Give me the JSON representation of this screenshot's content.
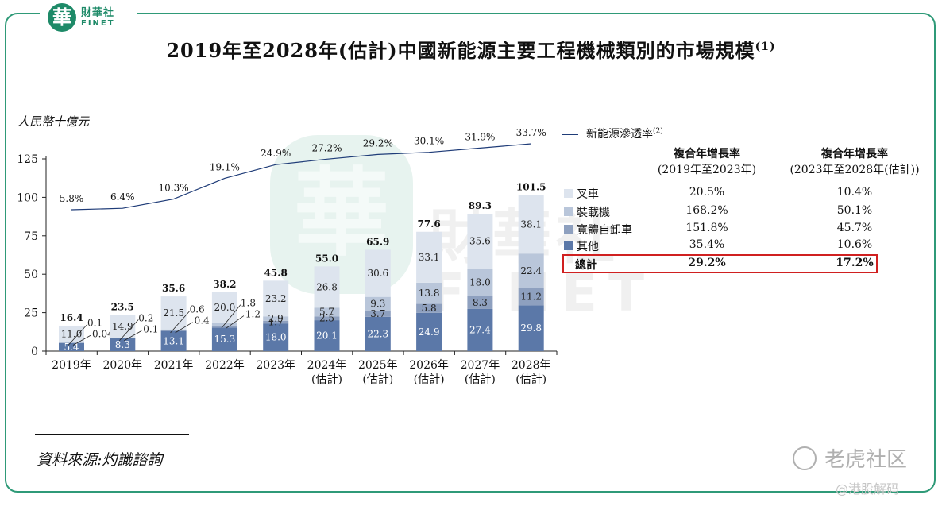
{
  "header": {
    "logo_seal": "華",
    "logo_cn": "財華社",
    "logo_en": "FINET"
  },
  "title": "2019年至2028年(估計)中國新能源主要工程機械類別的市場規模",
  "title_note": "(1)",
  "unit": "人民幣十億元",
  "penetration_legend": "新能源滲透率",
  "penetration_note": "(2)",
  "colors": {
    "forklift": "#dde4ee",
    "loader": "#b9c6da",
    "wide_body": "#8ea0bf",
    "other": "#5b78a8",
    "line": "#1f3c78",
    "frame": "#2f9a78",
    "highlight": "#d02020"
  },
  "chart_data": {
    "type": "bar",
    "stacked": true,
    "categories": [
      "2019年",
      "2020年",
      "2021年",
      "2022年",
      "2023年",
      "2024年\n(估計)",
      "2025年\n(估計)",
      "2026年\n(估計)",
      "2027年\n(估計)",
      "2028年\n(估計)"
    ],
    "ylim": [
      0,
      125
    ],
    "yticks": [
      "0",
      "25",
      "50",
      "75",
      "100",
      "125"
    ],
    "ylabel": "人民幣十億元",
    "series": [
      {
        "name": "其他",
        "values": [
          5.4,
          8.3,
          13.1,
          15.3,
          18.0,
          20.1,
          22.3,
          24.9,
          27.4,
          29.8
        ],
        "labels": [
          "5.4",
          "8.3",
          "13.1",
          "15.3",
          "18.0",
          "20.1",
          "22.3",
          "24.9",
          "27.4",
          "29.8"
        ]
      },
      {
        "name": "寬體自卸車",
        "values": [
          0.04,
          0.1,
          0.4,
          1.2,
          1.7,
          2.5,
          3.7,
          5.8,
          8.3,
          11.2
        ],
        "labels": [
          "0.04",
          "0.1",
          "0.4",
          "1.2",
          "1.7",
          "2.5",
          "3.7",
          "5.8",
          "8.3",
          "11.2"
        ]
      },
      {
        "name": "裝載機",
        "values": [
          0.1,
          0.2,
          0.6,
          1.8,
          2.9,
          5.7,
          9.3,
          13.8,
          18.0,
          22.4
        ],
        "labels": [
          "0.1",
          "0.2",
          "0.6",
          "1.8",
          "2.9",
          "5.7",
          "9.3",
          "13.8",
          "18.0",
          "22.4"
        ]
      },
      {
        "name": "叉車",
        "values": [
          11.0,
          14.9,
          21.5,
          20.0,
          23.2,
          26.8,
          30.6,
          33.1,
          35.6,
          38.1
        ],
        "labels": [
          "11.0",
          "14.9",
          "21.5",
          "20.0",
          "23.2",
          "26.8",
          "30.6",
          "33.1",
          "35.6",
          "38.1"
        ]
      }
    ],
    "totals": [
      "16.4",
      "23.5",
      "35.6",
      "38.2",
      "45.8",
      "55.0",
      "65.9",
      "77.6",
      "89.3",
      "101.5"
    ],
    "penetration": {
      "name": "新能源滲透率",
      "values": [
        5.8,
        6.4,
        10.3,
        19.1,
        24.9,
        27.2,
        29.2,
        30.1,
        31.9,
        33.7
      ],
      "labels": [
        "5.8%",
        "6.4%",
        "10.3%",
        "19.1%",
        "24.9%",
        "27.2%",
        "29.2%",
        "30.1%",
        "31.9%",
        "33.7%"
      ]
    }
  },
  "cagr_table": {
    "header_1": [
      "複合年增長率",
      "(2019年至2023年)"
    ],
    "header_2": [
      "複合年增長率",
      "(2023年至2028年(估計))"
    ],
    "rows": [
      {
        "label": "叉車",
        "a": "20.5%",
        "b": "10.4%"
      },
      {
        "label": "裝載機",
        "a": "168.2%",
        "b": "50.1%"
      },
      {
        "label": "寬體自卸車",
        "a": "151.8%",
        "b": "45.7%"
      },
      {
        "label": "其他",
        "a": "35.4%",
        "b": "10.6%"
      }
    ],
    "total": {
      "label": "總計",
      "a": "29.2%",
      "b": "17.2%"
    }
  },
  "source": "資料來源:灼識諮詢",
  "watermarks": {
    "tiger": "老虎社区",
    "handle": "@港股解码",
    "bg_seal": "華",
    "bg_text_1": "財華社",
    "bg_text_2": "FINET"
  }
}
